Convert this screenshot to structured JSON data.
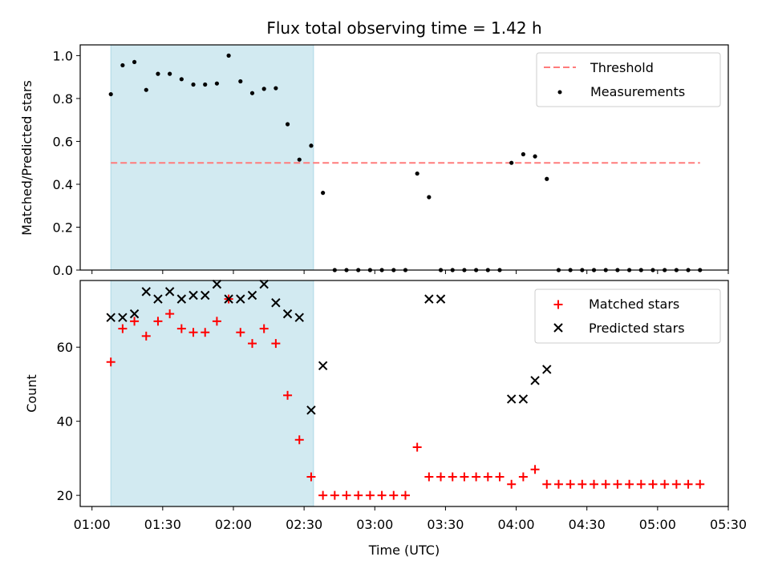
{
  "chart_data": {
    "type": "scatter",
    "title": "Flux total observing time = 1.42 h",
    "xlabel": "Time (UTC)",
    "x_tick_labels": [
      "01:00",
      "01:30",
      "02:00",
      "02:30",
      "03:00",
      "03:30",
      "04:00",
      "04:30",
      "05:00",
      "05:30"
    ],
    "xlim_minutes": [
      55,
      330
    ],
    "shaded_region_minutes": [
      68,
      154
    ],
    "colors": {
      "shade": "#add8e6",
      "threshold": "#ff7b7b",
      "measurement": "#000000",
      "matched": "#ff0000",
      "predicted": "#000000"
    },
    "panels": [
      {
        "name": "ratio",
        "ylabel": "Matched/Predicted stars",
        "ylim": [
          0,
          1.05
        ],
        "y_tick_labels": [
          "0.0",
          "0.2",
          "0.4",
          "0.6",
          "0.8",
          "1.0"
        ],
        "threshold": {
          "value": 0.5,
          "x_start": 68,
          "x_end": 318
        },
        "legend": [
          "Threshold",
          "Measurements"
        ],
        "series": [
          {
            "name": "Measurements",
            "x": [
              68,
              73,
              78,
              83,
              88,
              93,
              98,
              103,
              108,
              113,
              118,
              123,
              128,
              133,
              138,
              143,
              148,
              153,
              158,
              163,
              168,
              173,
              178,
              183,
              188,
              193,
              198,
              203,
              208,
              213,
              218,
              223,
              228,
              233,
              238,
              243,
              248,
              253,
              258,
              263,
              268,
              273,
              278,
              283,
              288,
              293,
              298,
              303,
              308,
              313,
              318
            ],
            "y": [
              0.82,
              0.955,
              0.97,
              0.84,
              0.915,
              0.915,
              0.89,
              0.865,
              0.865,
              0.87,
              1.0,
              0.88,
              0.825,
              0.845,
              0.848,
              0.68,
              0.515,
              0.58,
              0.36,
              0,
              0,
              0,
              0,
              0,
              0,
              0,
              0.45,
              0.34,
              0,
              0,
              0,
              0,
              0,
              0,
              0.5,
              0.54,
              0.53,
              0.425,
              0,
              0,
              0,
              0,
              0,
              0,
              0,
              0,
              0,
              0,
              0,
              0,
              0
            ]
          }
        ]
      },
      {
        "name": "count",
        "ylabel": "Count",
        "ylim": [
          17,
          78
        ],
        "y_tick_labels": [
          "20",
          "40",
          "60"
        ],
        "legend": [
          "Matched stars",
          "Predicted stars"
        ],
        "series": [
          {
            "name": "Matched stars",
            "x": [
              68,
              73,
              78,
              83,
              88,
              93,
              98,
              103,
              108,
              113,
              118,
              123,
              128,
              133,
              138,
              143,
              148,
              153,
              158,
              163,
              168,
              173,
              178,
              183,
              188,
              193,
              198,
              203,
              208,
              213,
              218,
              223,
              228,
              233,
              238,
              243,
              248,
              253,
              258,
              263,
              268,
              273,
              278,
              283,
              288,
              293,
              298,
              303,
              308,
              313,
              318
            ],
            "y": [
              56,
              65,
              67,
              63,
              67,
              69,
              65,
              64,
              64,
              67,
              73,
              64,
              61,
              65,
              61,
              47,
              35,
              25,
              20,
              20,
              20,
              20,
              20,
              20,
              20,
              20,
              33,
              25,
              25,
              25,
              25,
              25,
              25,
              25,
              23,
              25,
              27,
              23,
              23,
              23,
              23,
              23,
              23,
              23,
              23,
              23,
              23,
              23,
              23,
              23,
              23
            ]
          },
          {
            "name": "Predicted stars",
            "x": [
              68,
              73,
              78,
              83,
              88,
              93,
              98,
              103,
              108,
              113,
              118,
              123,
              128,
              133,
              138,
              143,
              148,
              153,
              158,
              203,
              208,
              238,
              243,
              248,
              253
            ],
            "y": [
              68,
              68,
              69,
              75,
              73,
              75,
              73,
              74,
              74,
              77,
              73,
              73,
              74,
              77,
              72,
              69,
              68,
              43,
              55,
              73,
              73,
              46,
              46,
              51,
              54
            ]
          }
        ]
      }
    ]
  }
}
